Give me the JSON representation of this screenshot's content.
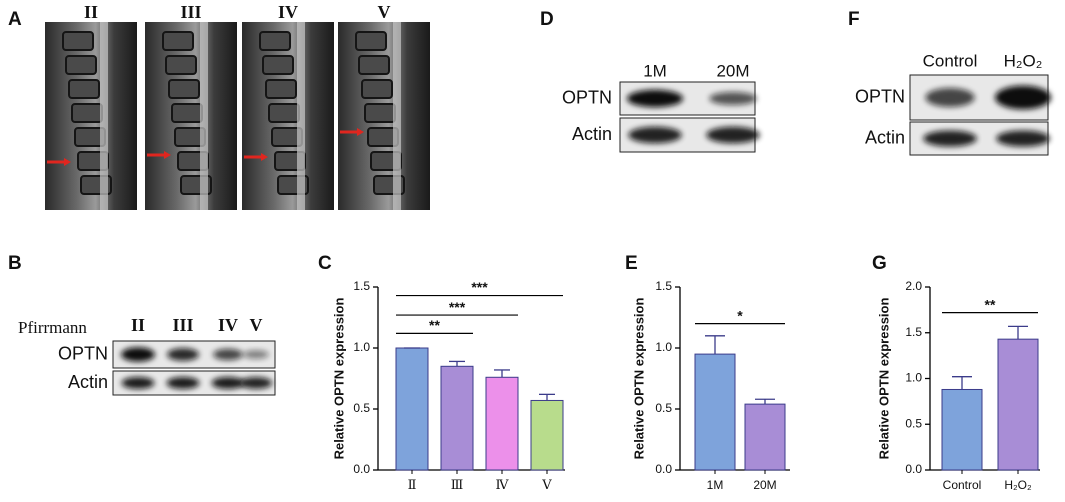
{
  "figure": {
    "labels": [
      "A",
      "B",
      "D",
      "F"
    ]
  },
  "mri": {
    "grades": [
      "II",
      "III",
      "IV",
      "V"
    ]
  },
  "blots": [
    {
      "header": "Pfirrmann",
      "lanes": [
        "II",
        "III",
        "IV",
        "V"
      ],
      "rows": [
        "OPTN",
        "Actin"
      ]
    },
    {
      "lanes": [
        "1M",
        "20M"
      ],
      "rows": [
        "OPTN",
        "Actin"
      ]
    },
    {
      "lanes": [
        "Control",
        "H₂O₂"
      ],
      "rows": [
        "OPTN",
        "Actin"
      ]
    }
  ],
  "chart_data": [
    {
      "type": "bar",
      "panel": "C",
      "ylabel": "Relative OPTN expression",
      "categories": [
        "Ⅱ",
        "Ⅲ",
        "Ⅳ",
        "Ⅴ"
      ],
      "values": [
        1.0,
        0.85,
        0.76,
        0.57
      ],
      "errors": [
        0,
        0.04,
        0.06,
        0.05
      ],
      "colors": [
        "#7ea3db",
        "#a88dd6",
        "#ec90ea",
        "#b8dc8c"
      ],
      "ylim": [
        0,
        1.5
      ],
      "yticks": [
        {
          "value": 0,
          "label": "0.0"
        },
        0.5,
        {
          "value": 1,
          "label": "1.0"
        },
        1.5
      ],
      "significance": [
        {
          "between": [
            0,
            1
          ],
          "y": 1.12,
          "label": "**"
        },
        {
          "between": [
            0,
            2
          ],
          "y": 1.27,
          "label": "***"
        },
        {
          "between": [
            0,
            3
          ],
          "y": 1.43,
          "label": "***"
        }
      ]
    },
    {
      "type": "bar",
      "panel": "E",
      "ylabel": "Relative OPTN expression",
      "categories": [
        "1M",
        "20M"
      ],
      "values": [
        0.95,
        0.54
      ],
      "errors": [
        0.15,
        0.04
      ],
      "colors": [
        "#7ea3db",
        "#a88dd6"
      ],
      "ylim": [
        0,
        1.5
      ],
      "yticks": [
        {
          "value": 0,
          "label": "0.0"
        },
        0.5,
        {
          "value": 1,
          "label": "1.0"
        },
        1.5
      ],
      "significance": [
        {
          "between": [
            0,
            1
          ],
          "y": 1.2,
          "label": "*"
        }
      ]
    },
    {
      "type": "bar",
      "panel": "G",
      "ylabel": "Relative OPTN expression",
      "categories": [
        "Control",
        "H₂O₂"
      ],
      "values": [
        0.88,
        1.43
      ],
      "errors": [
        0.14,
        0.14
      ],
      "colors": [
        "#7ea3db",
        "#a88dd6"
      ],
      "ylim": [
        0,
        2
      ],
      "yticks": [
        {
          "value": 0,
          "label": "0.0"
        },
        0.5,
        {
          "value": 1,
          "label": "1.0"
        },
        1.5,
        {
          "value": 2,
          "label": "2.0"
        }
      ],
      "significance": [
        {
          "between": [
            0,
            1
          ],
          "y": 1.72,
          "label": "**"
        }
      ]
    }
  ]
}
